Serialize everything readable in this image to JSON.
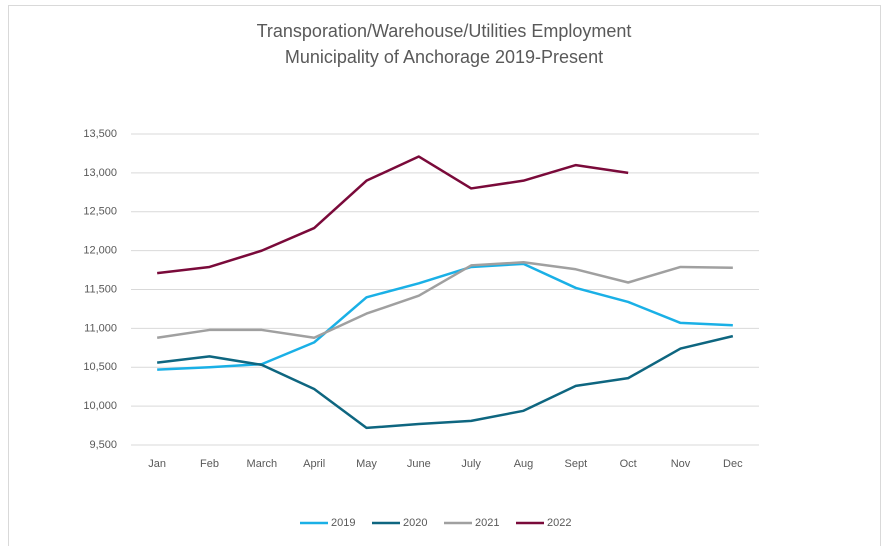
{
  "chart_data": {
    "type": "line",
    "title": [
      "Transporation/Warehouse/Utilities Employment",
      "Municipality of Anchorage 2019-Present"
    ],
    "categories": [
      "Jan",
      "Feb",
      "March",
      "April",
      "May",
      "June",
      "July",
      "Aug",
      "Sept",
      "Oct",
      "Nov",
      "Dec"
    ],
    "series": [
      {
        "name": "2019",
        "color": "#1ab0e6",
        "values": [
          10470,
          10500,
          10540,
          10820,
          11400,
          11580,
          11790,
          11830,
          11520,
          11340,
          11070,
          11040
        ]
      },
      {
        "name": "2020",
        "color": "#0e6680",
        "values": [
          10560,
          10640,
          10530,
          10220,
          9720,
          9770,
          9810,
          9940,
          10260,
          10360,
          10740,
          10900
        ]
      },
      {
        "name": "2021",
        "color": "#a0a0a0",
        "values": [
          10880,
          10980,
          10980,
          10880,
          11190,
          11420,
          11810,
          11850,
          11760,
          11590,
          11790,
          11780
        ]
      },
      {
        "name": "2022",
        "color": "#7a0a3a",
        "values": [
          11710,
          11790,
          12000,
          12290,
          12900,
          13210,
          12800,
          12900,
          13100,
          13000,
          null,
          null
        ]
      }
    ],
    "ylim": [
      9500,
      13500
    ],
    "yticks": [
      {
        "value": 9500,
        "label": "9,500"
      },
      {
        "value": 10000,
        "label": "10,000"
      },
      {
        "value": 10500,
        "label": "10,500"
      },
      {
        "value": 11000,
        "label": "11,000"
      },
      {
        "value": 11500,
        "label": "11,500"
      },
      {
        "value": 12000,
        "label": "12,000"
      },
      {
        "value": 12500,
        "label": "12,500"
      },
      {
        "value": 13000,
        "label": "13,000"
      },
      {
        "value": 13500,
        "label": "13,500"
      }
    ],
    "grid": true,
    "legend": "bottom"
  }
}
